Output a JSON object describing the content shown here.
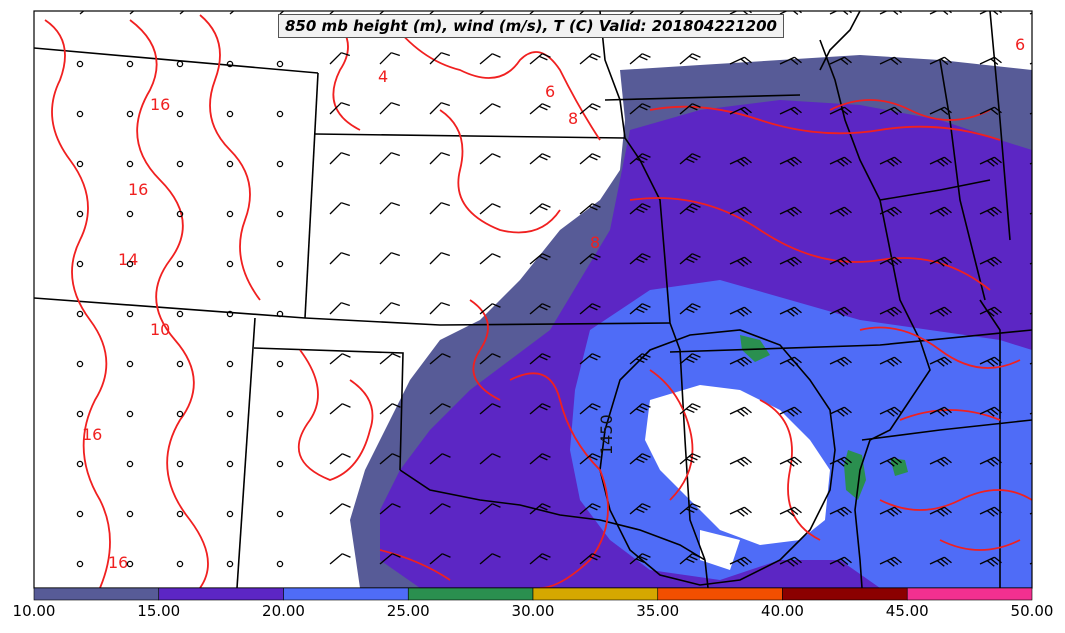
{
  "title": "850 mb height (m), wind (m/s), T (C) Valid: 201804221200",
  "height_contour_label": "1450",
  "temperature_contour_labels": [
    "6",
    "4",
    "6",
    "8",
    "8",
    "16",
    "16",
    "14",
    "10",
    "16",
    "16"
  ],
  "colorbar": {
    "ticks": [
      "10.00",
      "15.00",
      "20.00",
      "25.00",
      "30.00",
      "35.00",
      "40.00",
      "45.00",
      "50.00"
    ],
    "colors": [
      "#575b97",
      "#5c26c4",
      "#4f6cf7",
      "#2a8f4f",
      "#d5a800",
      "#f24f00",
      "#8b0000",
      "#f23090"
    ]
  },
  "legend_meaning": {
    "shading": "wind speed (m/s)",
    "red_contours": "temperature (C)",
    "black_contour": "850 mb height (m)"
  }
}
